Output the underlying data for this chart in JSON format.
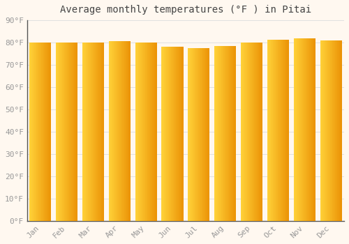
{
  "title": "Average monthly temperatures (°F ) in Pitai",
  "months": [
    "Jan",
    "Feb",
    "Mar",
    "Apr",
    "May",
    "Jun",
    "Jul",
    "Aug",
    "Sep",
    "Oct",
    "Nov",
    "Dec"
  ],
  "values": [
    80.1,
    80.1,
    80.1,
    80.6,
    79.9,
    78.1,
    77.5,
    78.6,
    79.9,
    81.3,
    82.0,
    81.1
  ],
  "bar_color_main": "#FFA500",
  "bar_color_left": "#FFD040",
  "bar_color_right": "#E08000",
  "background_color": "#FFF8F0",
  "grid_color": "#E0E0E0",
  "text_color": "#999999",
  "ylim": [
    0,
    90
  ],
  "ytick_step": 10,
  "title_fontsize": 10,
  "tick_fontsize": 8,
  "bar_width": 0.82
}
